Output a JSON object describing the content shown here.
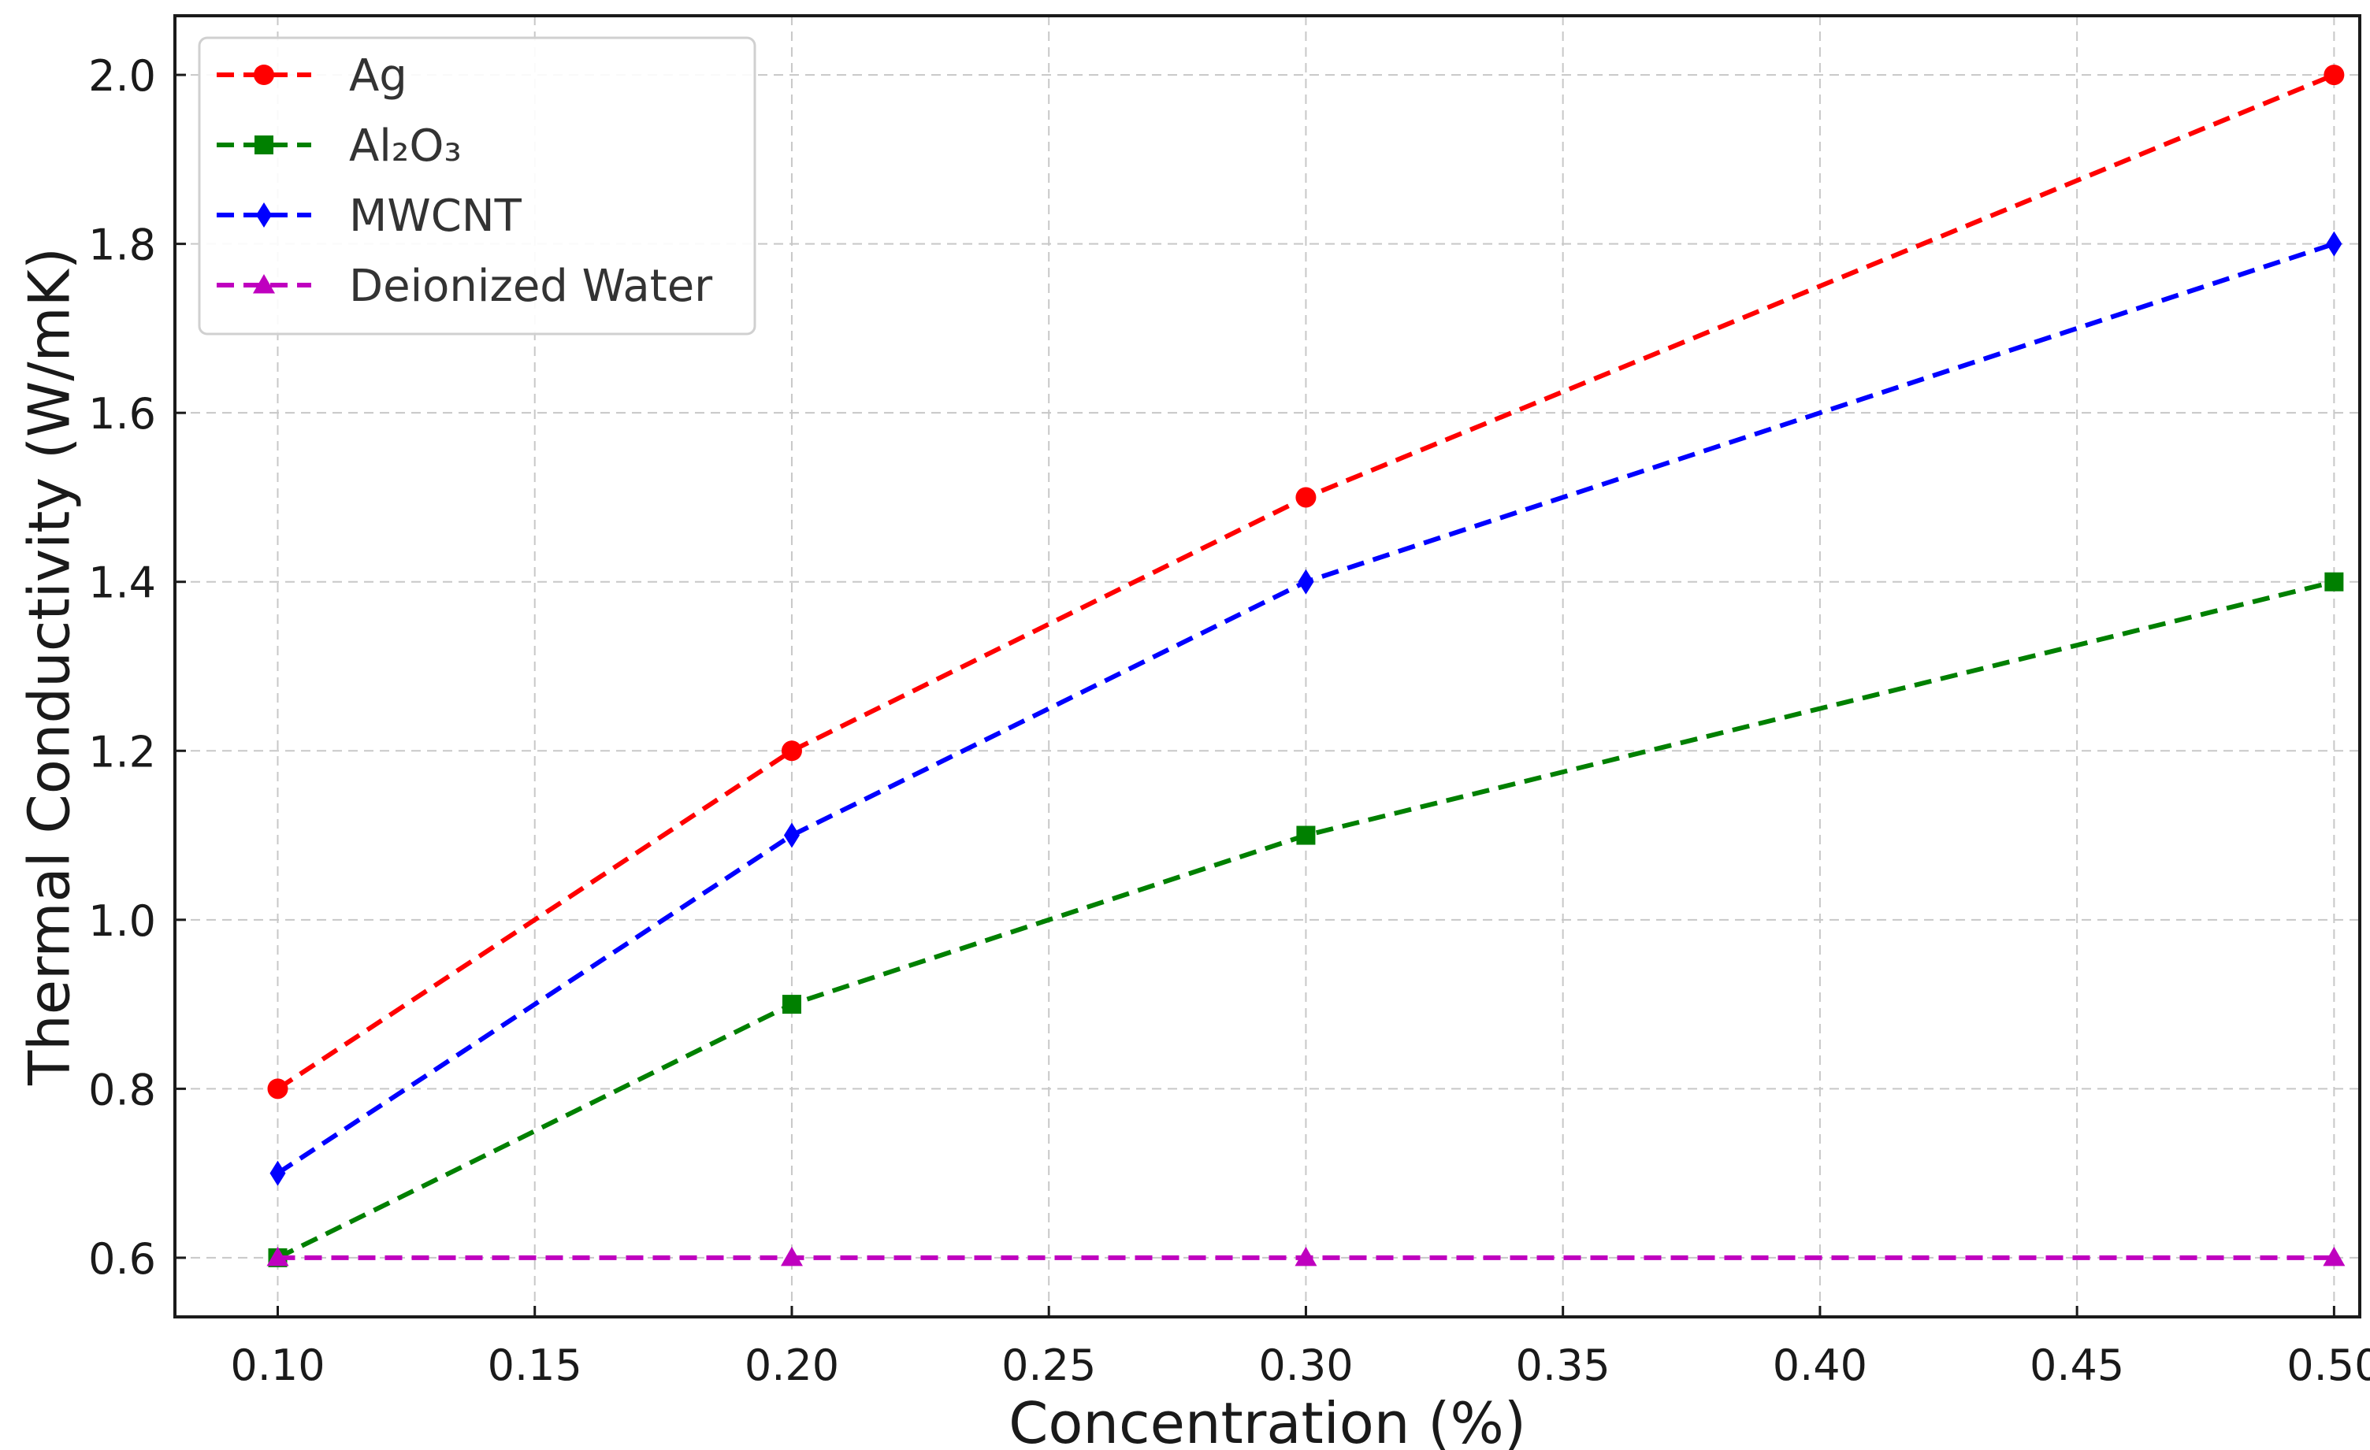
{
  "chart_data": {
    "type": "line",
    "title": "",
    "xlabel": "Concentration (%)",
    "ylabel": "Thermal Conductivity (W/mK)",
    "x": [
      0.1,
      0.2,
      0.3,
      0.5
    ],
    "xlim": [
      0.08,
      0.505
    ],
    "ylim": [
      0.53,
      2.07
    ],
    "xticks": [
      0.1,
      0.15,
      0.2,
      0.25,
      0.3,
      0.35,
      0.4,
      0.45,
      0.5
    ],
    "xtick_labels": [
      "0.10",
      "0.15",
      "0.20",
      "0.25",
      "0.30",
      "0.35",
      "0.40",
      "0.45",
      "0.50"
    ],
    "yticks": [
      0.6,
      0.8,
      1.0,
      1.2,
      1.4,
      1.6,
      1.8,
      2.0
    ],
    "ytick_labels": [
      "0.6",
      "0.8",
      "1.0",
      "1.2",
      "1.4",
      "1.6",
      "1.8",
      "2.0"
    ],
    "grid": true,
    "legend_position": "top-left",
    "series": [
      {
        "name": "Ag",
        "values": [
          0.8,
          1.2,
          1.5,
          2.0
        ],
        "color": "#ff0000",
        "marker": "circle"
      },
      {
        "name": "Al₂O₃",
        "values": [
          0.6,
          0.9,
          1.1,
          1.4
        ],
        "color": "#008000",
        "marker": "square"
      },
      {
        "name": "MWCNT",
        "values": [
          0.7,
          1.1,
          1.4,
          1.8
        ],
        "color": "#0000ff",
        "marker": "diamond"
      },
      {
        "name": "Deionized Water",
        "values": [
          0.6,
          0.6,
          0.6,
          0.6
        ],
        "color": "#bf00bf",
        "marker": "triangle"
      }
    ]
  }
}
